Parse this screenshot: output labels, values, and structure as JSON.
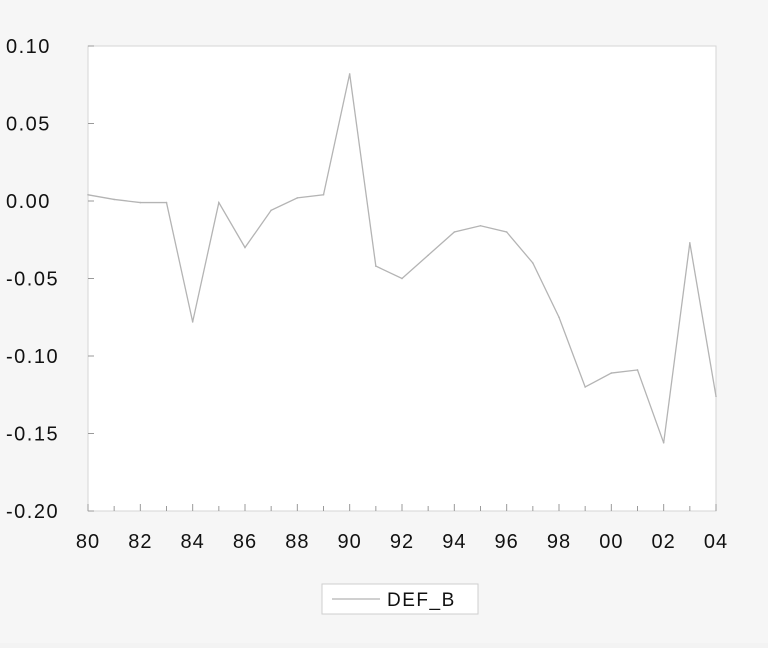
{
  "chart_data": {
    "type": "line",
    "x": [
      1980,
      1981,
      1982,
      1983,
      1984,
      1985,
      1986,
      1987,
      1988,
      1989,
      1990,
      1991,
      1992,
      1993,
      1994,
      1995,
      1996,
      1997,
      1998,
      1999,
      2000,
      2001,
      2002,
      2003,
      2004
    ],
    "series": [
      {
        "name": "DEF_B",
        "values": [
          0.004,
          0.001,
          -0.001,
          -0.001,
          -0.078,
          -0.001,
          -0.03,
          -0.006,
          0.002,
          0.004,
          0.082,
          -0.042,
          -0.05,
          -0.035,
          -0.02,
          -0.016,
          -0.02,
          -0.04,
          -0.075,
          -0.12,
          -0.111,
          -0.109,
          -0.156,
          -0.027,
          -0.126
        ],
        "color": "#b4b4b4"
      }
    ],
    "xticklabels": [
      "80",
      "82",
      "84",
      "86",
      "88",
      "90",
      "92",
      "94",
      "96",
      "98",
      "00",
      "02",
      "04"
    ],
    "yticks": [
      0.1,
      0.05,
      0.0,
      -0.05,
      -0.1,
      -0.15,
      -0.2
    ],
    "yticklabels": [
      "0.10",
      "0.05",
      "0.00",
      "-0.05",
      "-0.10",
      "-0.15",
      "-0.20"
    ],
    "ylim": [
      -0.2,
      0.1
    ],
    "xlim": [
      1980,
      2004
    ],
    "legend": "bottom-center",
    "grid": false
  }
}
